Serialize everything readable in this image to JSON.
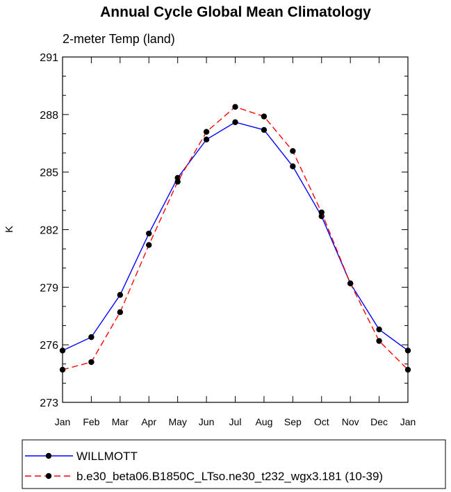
{
  "chart_data": {
    "type": "line",
    "title": "Annual Cycle Global Mean Climatology",
    "subtitle": "2-meter Temp (land)",
    "ylabel": "K",
    "xlabel": "",
    "categories": [
      "Jan",
      "Feb",
      "Mar",
      "Apr",
      "May",
      "Jun",
      "Jul",
      "Aug",
      "Sep",
      "Oct",
      "Nov",
      "Dec",
      "Jan"
    ],
    "ylim": [
      273,
      291
    ],
    "yticks": [
      "273",
      "276",
      "279",
      "282",
      "285",
      "288",
      "291"
    ],
    "grid": false,
    "legend_position": "bottom",
    "series": [
      {
        "name": "WILLMOTT",
        "color": "#0000ff",
        "line_style": "solid",
        "values": [
          275.7,
          276.4,
          278.6,
          281.8,
          284.7,
          286.7,
          287.6,
          287.2,
          285.3,
          282.7,
          279.2,
          276.8,
          275.7
        ]
      },
      {
        "name": "b.e30_beta06.B1850C_LTso.ne30_t232_wgx3.181 (10-39)",
        "color": "#ff0000",
        "line_style": "dashed",
        "values": [
          274.7,
          275.1,
          277.7,
          281.2,
          284.5,
          287.1,
          288.4,
          287.9,
          286.1,
          282.9,
          279.2,
          276.2,
          274.7
        ]
      }
    ]
  }
}
